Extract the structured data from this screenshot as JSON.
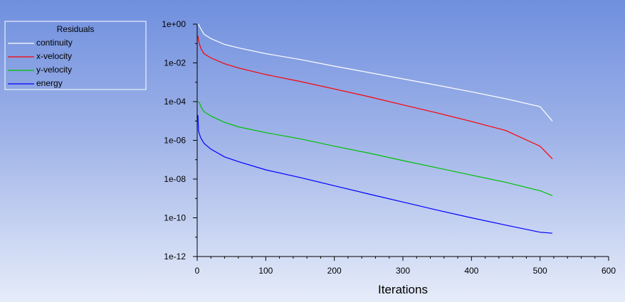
{
  "chart_data": {
    "type": "line",
    "title": "",
    "xlabel": "Iterations",
    "ylabel": "",
    "xlim": [
      0,
      600
    ],
    "ylim": [
      1e-12,
      1
    ],
    "yscale": "log",
    "x_ticks": [
      "0",
      "100",
      "200",
      "300",
      "400",
      "500",
      "600"
    ],
    "y_ticks": [
      "1e+00",
      "1e-02",
      "1e-04",
      "1e-06",
      "1e-08",
      "1e-10",
      "1e-12"
    ],
    "legend": {
      "title": "Residuals",
      "placement": "top-left"
    },
    "grid": false,
    "series": [
      {
        "name": "continuity",
        "color": "#ffffff",
        "points": [
          [
            1,
            1
          ],
          [
            2,
            0.95
          ],
          [
            5,
            0.6
          ],
          [
            10,
            0.3
          ],
          [
            20,
            0.18
          ],
          [
            40,
            0.09
          ],
          [
            60,
            0.06
          ],
          [
            100,
            0.03
          ],
          [
            150,
            0.015
          ],
          [
            200,
            0.0068
          ],
          [
            250,
            0.0032
          ],
          [
            300,
            0.0015
          ],
          [
            350,
            0.0007
          ],
          [
            400,
            0.00032
          ],
          [
            450,
            0.00014
          ],
          [
            500,
            5.5e-05
          ],
          [
            518,
            1e-05
          ]
        ]
      },
      {
        "name": "x-velocity",
        "color": "#ff0000",
        "points": [
          [
            1,
            0.25
          ],
          [
            3,
            0.1
          ],
          [
            6,
            0.05
          ],
          [
            10,
            0.03
          ],
          [
            20,
            0.018
          ],
          [
            40,
            0.009
          ],
          [
            60,
            0.0055
          ],
          [
            100,
            0.0025
          ],
          [
            150,
            0.0011
          ],
          [
            200,
            0.00045
          ],
          [
            250,
            0.00018
          ],
          [
            300,
            6.8e-05
          ],
          [
            350,
            2.6e-05
          ],
          [
            400,
            9.5e-06
          ],
          [
            450,
            3.2e-06
          ],
          [
            500,
            5e-07
          ],
          [
            518,
            1.1e-07
          ]
        ]
      },
      {
        "name": "y-velocity",
        "color": "#00c000",
        "points": [
          [
            1,
            0.0001
          ],
          [
            3,
            9e-05
          ],
          [
            6,
            5e-05
          ],
          [
            10,
            3e-05
          ],
          [
            20,
            1.8e-05
          ],
          [
            40,
            8.5e-06
          ],
          [
            60,
            5e-06
          ],
          [
            100,
            2.5e-06
          ],
          [
            150,
            1.2e-06
          ],
          [
            200,
            5e-07
          ],
          [
            250,
            2.2e-07
          ],
          [
            300,
            9e-08
          ],
          [
            350,
            3.8e-08
          ],
          [
            400,
            1.6e-08
          ],
          [
            450,
            6.8e-09
          ],
          [
            500,
            2.5e-09
          ],
          [
            518,
            1.4e-09
          ]
        ]
      },
      {
        "name": "energy",
        "color": "#0000ff",
        "points": [
          [
            1,
            2e-05
          ],
          [
            2,
            3e-06
          ],
          [
            5,
            1.4e-06
          ],
          [
            10,
            7e-07
          ],
          [
            20,
            3.5e-07
          ],
          [
            40,
            1.4e-07
          ],
          [
            60,
            8e-08
          ],
          [
            100,
            3e-08
          ],
          [
            150,
            1.2e-08
          ],
          [
            200,
            4.5e-09
          ],
          [
            250,
            1.7e-09
          ],
          [
            300,
            6.5e-10
          ],
          [
            350,
            2.5e-10
          ],
          [
            400,
            1e-10
          ],
          [
            450,
            4.2e-11
          ],
          [
            500,
            1.8e-11
          ],
          [
            518,
            1.6e-11
          ]
        ]
      }
    ]
  }
}
